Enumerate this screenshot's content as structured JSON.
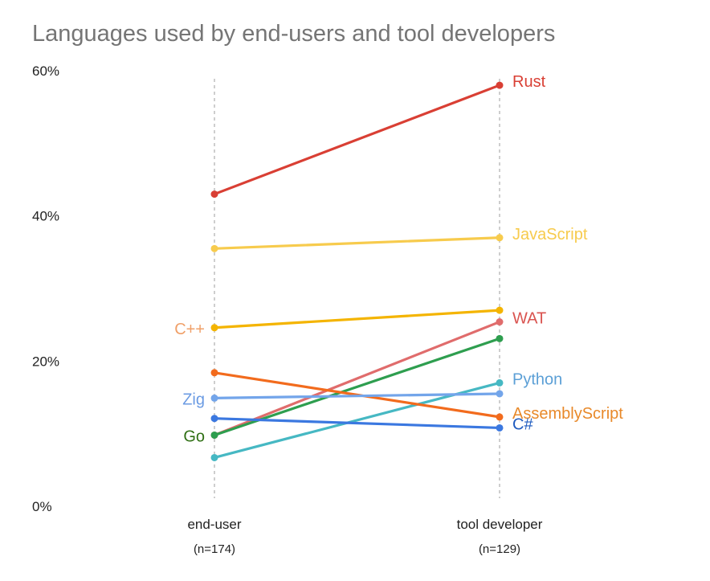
{
  "chart_data": {
    "type": "line",
    "title": "Languages used by end-users and tool developers",
    "categories": [
      "end-user",
      "tool developer"
    ],
    "category_counts": [
      "(n=174)",
      "(n=129)"
    ],
    "ylim": [
      0,
      60
    ],
    "yticks": [
      0,
      20,
      40,
      60
    ],
    "ytick_labels": [
      "0%",
      "20%",
      "40%",
      "60%"
    ],
    "grid": false,
    "series": [
      {
        "name": "Rust",
        "values": [
          43,
          58
        ],
        "color": "#d93f34",
        "label_side": "right"
      },
      {
        "name": "JavaScript",
        "values": [
          35.5,
          37
        ],
        "color": "#f7cb4d",
        "label_side": "right"
      },
      {
        "name": "C++",
        "values": [
          24.6,
          27
        ],
        "color": "#f4b400",
        "label_side": "left",
        "label_color": "#f0a069"
      },
      {
        "name": "WAT",
        "values": [
          9.8,
          25.4
        ],
        "color": "#e06c6c",
        "label_side": "right",
        "label_color": "#d9534f"
      },
      {
        "name": "Go",
        "values": [
          9.8,
          23.1
        ],
        "color": "#2e9e4f",
        "label_side": "left",
        "label_color": "#2f6f14"
      },
      {
        "name": "Python",
        "values": [
          6.7,
          17
        ],
        "color": "#46b8c3",
        "label_side": "right",
        "label_color": "#5b9fd6"
      },
      {
        "name": "AssemblyScript",
        "values": [
          18.4,
          12.3
        ],
        "color": "#f26b1d",
        "label_side": "right",
        "label_color": "#e8892a"
      },
      {
        "name": "Zig",
        "values": [
          14.9,
          15.5
        ],
        "color": "#73a5ea",
        "label_side": "left",
        "label_color": "#6b9be3"
      },
      {
        "name": "C#",
        "values": [
          12.1,
          10.8
        ],
        "color": "#3b78e0",
        "label_side": "right",
        "label_color": "#1f5bbf"
      }
    ]
  }
}
